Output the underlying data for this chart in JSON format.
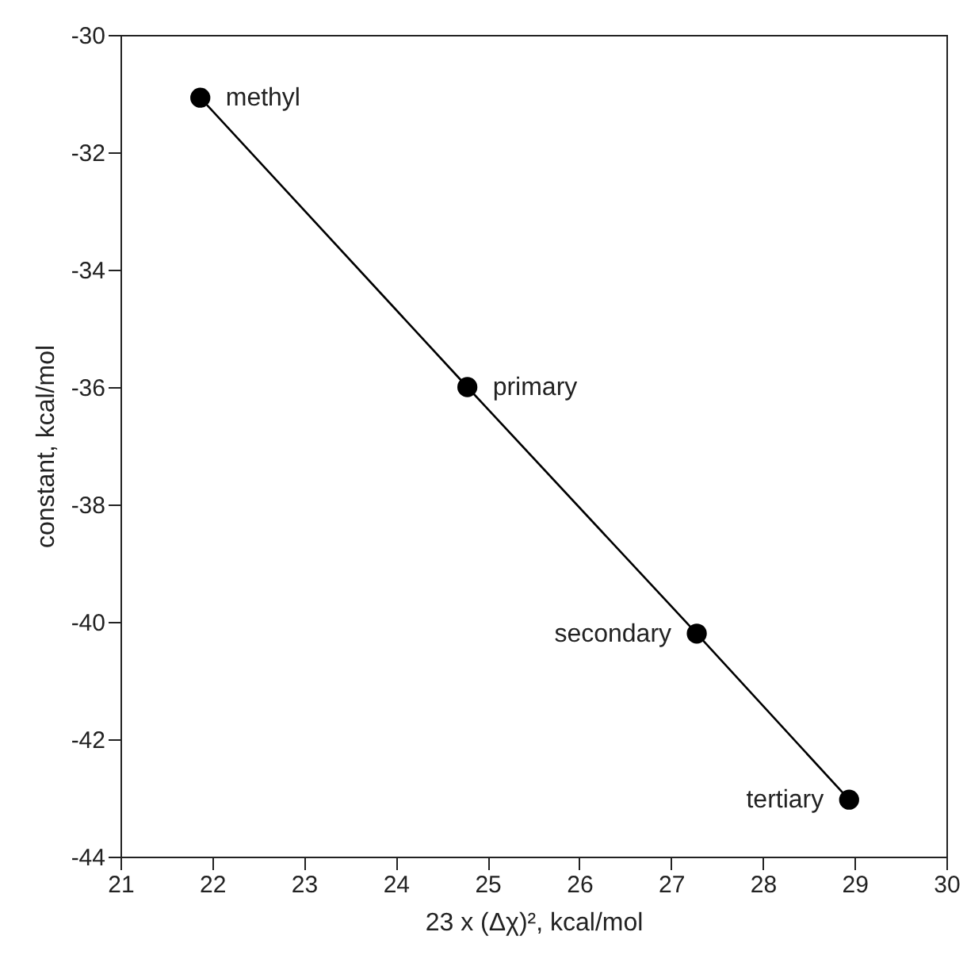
{
  "chart_data": {
    "type": "line",
    "xlabel": "23 x (Δχ)², kcal/mol",
    "ylabel": "constant, kcal/mol",
    "x": [
      21.87,
      24.78,
      27.28,
      28.94
    ],
    "series": [
      {
        "color": "#000000",
        "values": [
          -31.07,
          -36.0,
          -40.2,
          -43.03
        ]
      }
    ],
    "marker": "circle",
    "line_style": "solid",
    "xlim": [
      21,
      30
    ],
    "xticks": [
      21,
      22,
      23,
      24,
      25,
      26,
      27,
      28,
      29,
      30
    ],
    "ylim": [
      -44,
      -30
    ],
    "yticks": [
      -44,
      -42,
      -40,
      -38,
      -36,
      -34,
      -32,
      -30
    ],
    "grid": false,
    "annotations": [
      {
        "text": "methyl",
        "x": 21.87,
        "y": -31.07
      },
      {
        "text": "primary",
        "x": 24.78,
        "y": -36.0
      },
      {
        "text": "secondary",
        "x": 27.28,
        "y": -40.2
      },
      {
        "text": "tertiary",
        "x": 28.94,
        "y": -43.03
      }
    ]
  }
}
